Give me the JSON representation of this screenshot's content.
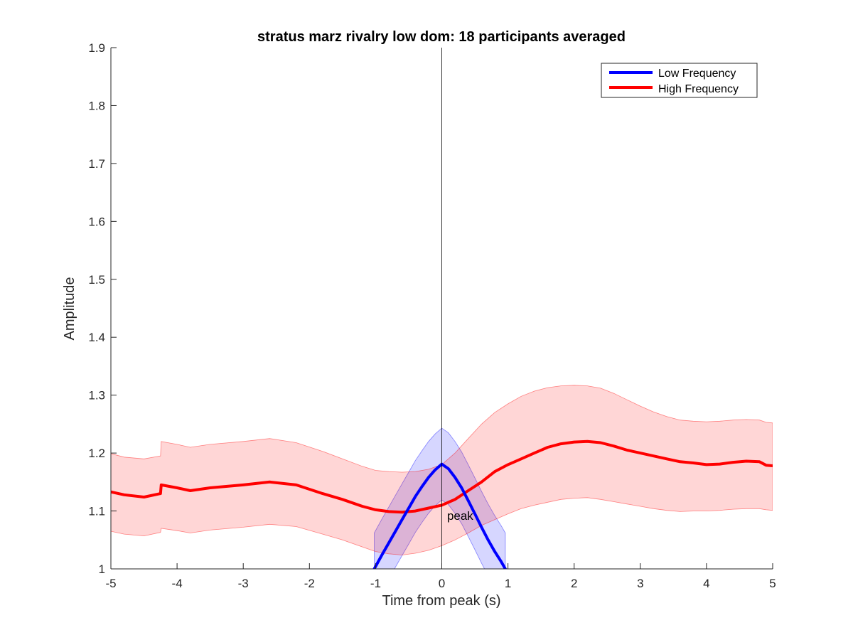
{
  "chart_data": {
    "type": "line",
    "title": "stratus marz rivalry low dom: 18 participants averaged",
    "xlabel": "Time from peak (s)",
    "ylabel": "Amplitude",
    "xlim": [
      -5,
      5
    ],
    "ylim": [
      1,
      1.9
    ],
    "xticks": [
      -5,
      -4,
      -3,
      -2,
      -1,
      0,
      1,
      2,
      3,
      4,
      5
    ],
    "yticks": [
      1,
      1.1,
      1.2,
      1.3,
      1.4,
      1.5,
      1.6,
      1.7,
      1.8,
      1.9
    ],
    "xtick_labels": [
      "-5",
      "-4",
      "-3",
      "-2",
      "-1",
      "0",
      "1",
      "2",
      "3",
      "4",
      "5"
    ],
    "ytick_labels": [
      "1",
      "1.1",
      "1.2",
      "1.3",
      "1.4",
      "1.5",
      "1.6",
      "1.7",
      "1.8",
      "1.9"
    ],
    "legend_position": "top-right",
    "vertical_line_x": 0,
    "annotation": {
      "text": "peak",
      "x": 0.08,
      "y": 1.085
    },
    "series": [
      {
        "name": "Low Frequency",
        "color": "#0000ff",
        "band_color": "#0000ff",
        "x": [
          -1.02,
          -0.9,
          -0.8,
          -0.7,
          -0.6,
          -0.5,
          -0.4,
          -0.3,
          -0.2,
          -0.1,
          0.0,
          0.1,
          0.2,
          0.3,
          0.4,
          0.5,
          0.6,
          0.7,
          0.8,
          0.9,
          0.96
        ],
        "y": [
          1.0,
          1.025,
          1.045,
          1.065,
          1.085,
          1.105,
          1.125,
          1.142,
          1.158,
          1.171,
          1.181,
          1.173,
          1.158,
          1.14,
          1.118,
          1.095,
          1.072,
          1.05,
          1.03,
          1.012,
          1.0
        ],
        "upper": [
          1.062,
          1.087,
          1.107,
          1.127,
          1.147,
          1.167,
          1.187,
          1.204,
          1.22,
          1.233,
          1.243,
          1.235,
          1.22,
          1.202,
          1.18,
          1.157,
          1.134,
          1.112,
          1.092,
          1.074,
          1.062
        ],
        "lower": [
          0.938,
          0.963,
          0.983,
          1.003,
          1.023,
          1.043,
          1.063,
          1.08,
          1.096,
          1.109,
          1.119,
          1.111,
          1.096,
          1.078,
          1.056,
          1.033,
          1.01,
          0.988,
          0.968,
          0.95,
          0.938
        ]
      },
      {
        "name": "High Frequency",
        "color": "#ff0000",
        "band_color": "#ff0000",
        "x": [
          -5.0,
          -4.8,
          -4.5,
          -4.25,
          -4.24,
          -4.0,
          -3.8,
          -3.5,
          -3.0,
          -2.6,
          -2.2,
          -1.8,
          -1.5,
          -1.2,
          -1.0,
          -0.8,
          -0.6,
          -0.4,
          -0.2,
          0.0,
          0.2,
          0.4,
          0.6,
          0.8,
          1.0,
          1.2,
          1.4,
          1.6,
          1.8,
          2.0,
          2.2,
          2.4,
          2.6,
          2.8,
          3.0,
          3.2,
          3.4,
          3.6,
          3.8,
          4.0,
          4.2,
          4.4,
          4.6,
          4.8,
          4.9,
          5.0
        ],
        "y": [
          1.133,
          1.128,
          1.124,
          1.13,
          1.145,
          1.14,
          1.135,
          1.14,
          1.145,
          1.15,
          1.145,
          1.13,
          1.12,
          1.108,
          1.102,
          1.099,
          1.098,
          1.1,
          1.105,
          1.11,
          1.12,
          1.135,
          1.15,
          1.168,
          1.18,
          1.19,
          1.2,
          1.21,
          1.216,
          1.219,
          1.22,
          1.218,
          1.212,
          1.205,
          1.2,
          1.195,
          1.19,
          1.185,
          1.183,
          1.18,
          1.181,
          1.184,
          1.186,
          1.185,
          1.179,
          1.178
        ],
        "upper": [
          1.199,
          1.193,
          1.19,
          1.195,
          1.22,
          1.215,
          1.21,
          1.215,
          1.22,
          1.225,
          1.218,
          1.203,
          1.19,
          1.177,
          1.17,
          1.168,
          1.167,
          1.168,
          1.172,
          1.18,
          1.2,
          1.225,
          1.25,
          1.27,
          1.285,
          1.298,
          1.307,
          1.313,
          1.316,
          1.317,
          1.316,
          1.312,
          1.303,
          1.292,
          1.281,
          1.271,
          1.263,
          1.257,
          1.255,
          1.254,
          1.255,
          1.257,
          1.258,
          1.257,
          1.253,
          1.252
        ],
        "lower": [
          1.065,
          1.06,
          1.057,
          1.063,
          1.07,
          1.066,
          1.062,
          1.067,
          1.072,
          1.077,
          1.073,
          1.06,
          1.05,
          1.038,
          1.03,
          1.026,
          1.024,
          1.027,
          1.032,
          1.04,
          1.05,
          1.062,
          1.075,
          1.085,
          1.095,
          1.104,
          1.11,
          1.115,
          1.12,
          1.122,
          1.123,
          1.12,
          1.116,
          1.112,
          1.108,
          1.104,
          1.101,
          1.099,
          1.1,
          1.1,
          1.101,
          1.103,
          1.104,
          1.104,
          1.102,
          1.101
        ]
      }
    ]
  }
}
